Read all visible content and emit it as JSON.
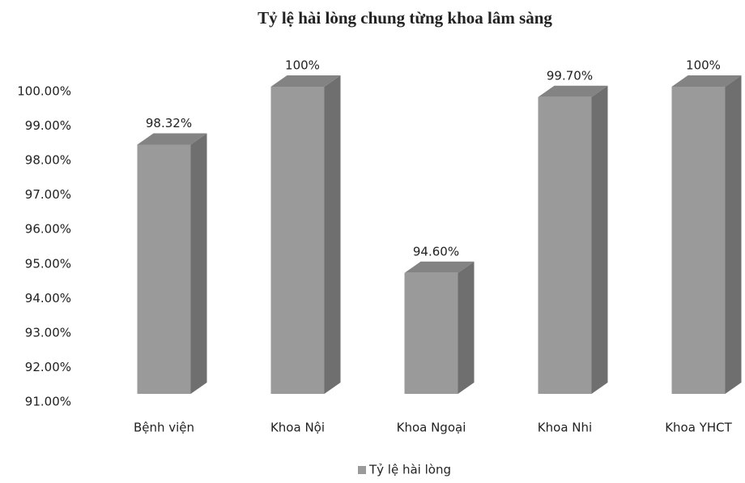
{
  "chart_data": {
    "type": "bar3d",
    "title": "Tỷ lệ hài lòng chung từng khoa lâm sàng",
    "categories": [
      "Bệnh viện",
      "Khoa Nội",
      "Khoa Ngoại",
      "Khoa Nhi",
      "Khoa YHCT"
    ],
    "series": [
      {
        "name": "Tỷ lệ hài lòng",
        "color": "#9a9a9a",
        "values": [
          98.32,
          100,
          94.6,
          99.7,
          100
        ],
        "value_labels": [
          "98.32%",
          "100%",
          "94.60%",
          "99.70%",
          "100%"
        ]
      }
    ],
    "ylim": [
      91,
      100
    ],
    "yticks": [
      {
        "value": 91,
        "label": "91.00%"
      },
      {
        "value": 92,
        "label": "92.00%"
      },
      {
        "value": 93,
        "label": "93.00%"
      },
      {
        "value": 94,
        "label": "94.00%"
      },
      {
        "value": 95,
        "label": "95.00%"
      },
      {
        "value": 96,
        "label": "96.00%"
      },
      {
        "value": 97,
        "label": "97.00%"
      },
      {
        "value": 98,
        "label": "98.00%"
      },
      {
        "value": 99,
        "label": "99.00%"
      },
      {
        "value": 100,
        "label": "100.00%"
      }
    ],
    "grid": false,
    "legend": "bottom"
  }
}
